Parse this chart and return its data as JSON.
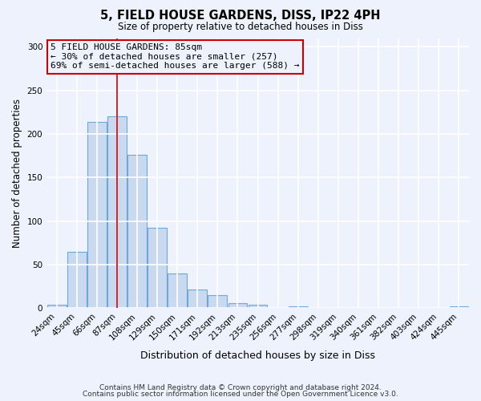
{
  "title": "5, FIELD HOUSE GARDENS, DISS, IP22 4PH",
  "subtitle": "Size of property relative to detached houses in Diss",
  "xlabel": "Distribution of detached houses by size in Diss",
  "ylabel": "Number of detached properties",
  "bar_color": "#c9d9f0",
  "bar_edge_color": "#6fa8d6",
  "bin_labels": [
    "24sqm",
    "45sqm",
    "66sqm",
    "87sqm",
    "108sqm",
    "129sqm",
    "150sqm",
    "171sqm",
    "192sqm",
    "213sqm",
    "235sqm",
    "256sqm",
    "277sqm",
    "298sqm",
    "319sqm",
    "340sqm",
    "361sqm",
    "382sqm",
    "403sqm",
    "424sqm",
    "445sqm"
  ],
  "bar_heights": [
    4,
    65,
    214,
    220,
    176,
    92,
    40,
    21,
    15,
    6,
    4,
    0,
    2,
    0,
    0,
    0,
    0,
    0,
    0,
    0,
    2
  ],
  "ylim": [
    0,
    310
  ],
  "yticks": [
    0,
    50,
    100,
    150,
    200,
    250,
    300
  ],
  "vline_index": 3,
  "annotation_text_line1": "5 FIELD HOUSE GARDENS: 85sqm",
  "annotation_text_line2": "← 30% of detached houses are smaller (257)",
  "annotation_text_line3": "69% of semi-detached houses are larger (588) →",
  "annotation_box_color": "#cc0000",
  "vline_color": "#cc0000",
  "footer_line1": "Contains HM Land Registry data © Crown copyright and database right 2024.",
  "footer_line2": "Contains public sector information licensed under the Open Government Licence v3.0.",
  "background_color": "#eef2fc",
  "grid_color": "#ffffff"
}
